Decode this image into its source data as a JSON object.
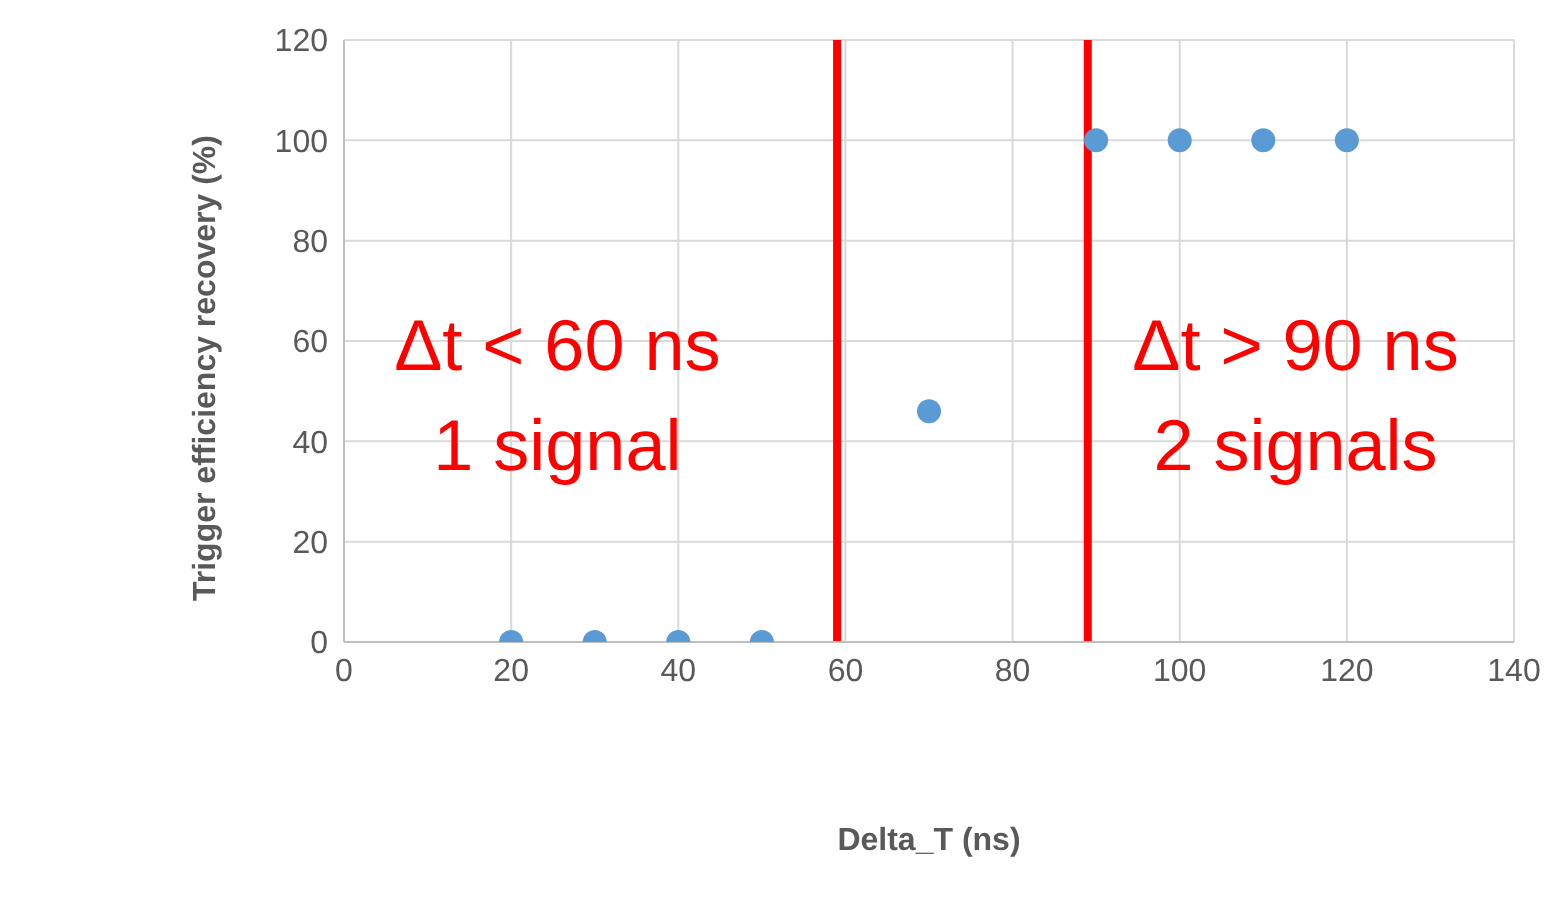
{
  "chart_data": {
    "type": "scatter",
    "xlabel": "Delta_T (ns)",
    "ylabel": "Trigger efficiency recovery (%)",
    "x": [
      20,
      30,
      40,
      50,
      70,
      90,
      100,
      110,
      120
    ],
    "series": [
      {
        "color": "#5b9bd5",
        "values": [
          0,
          0,
          0,
          0,
          46,
          100,
          100,
          100,
          100
        ]
      }
    ],
    "xlim": [
      0,
      140
    ],
    "xticks": [
      0,
      20,
      40,
      60,
      80,
      100,
      120,
      140
    ],
    "ylim": [
      0,
      120
    ],
    "yticks": [
      0,
      20,
      40,
      60,
      80,
      100,
      120
    ],
    "grid": true,
    "marker": "circle",
    "legend": false,
    "ref_lines": [
      {
        "axis": "x",
        "value": 59,
        "color": "#ff0000"
      },
      {
        "axis": "x",
        "value": 89,
        "color": "#ff0000"
      }
    ],
    "annotations": [
      "Δt < 60 ns\n1 signal",
      "Δt > 90 ns\n2 signals"
    ]
  }
}
